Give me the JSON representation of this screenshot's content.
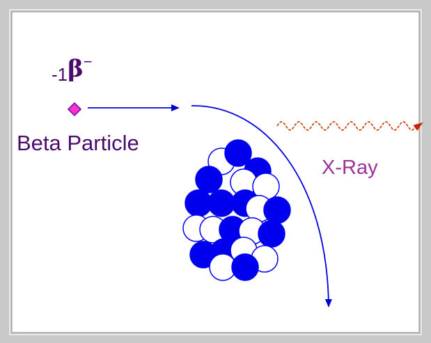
{
  "beta_symbol": {
    "subscript": "-1",
    "symbol": "β",
    "superscript": "−"
  },
  "beta_label": "Beta Particle",
  "xray_label": "X-Ray"
}
